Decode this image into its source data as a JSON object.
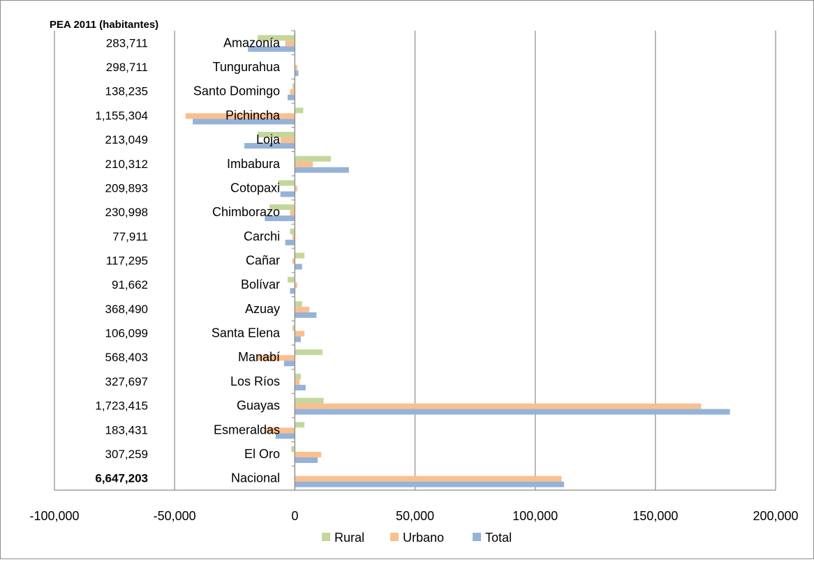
{
  "chart_data": {
    "type": "bar",
    "orientation": "horizontal",
    "header_label": "PEA  2011 (habitantes)",
    "categories": [
      "Amazonía",
      "Tungurahua",
      "Santo Domingo",
      "Pichincha",
      "Loja",
      "Imbabura",
      "Cotopaxi",
      "Chimborazo",
      "Carchi",
      "Cañar",
      "Bolívar",
      "Azuay",
      "Santa Elena",
      "Manabí",
      "Los Ríos",
      "Guayas",
      "Esmeraldas",
      "El Oro",
      "Nacional"
    ],
    "pea_values": [
      "283,711",
      "298,711",
      "138,235",
      "1,155,304",
      "213,049",
      "210,312",
      "209,893",
      "230,998",
      "77,911",
      "117,295",
      "91,662",
      "368,490",
      "106,099",
      "568,403",
      "327,697",
      "1,723,415",
      "183,431",
      "307,259",
      "6,647,203"
    ],
    "series": [
      {
        "name": "Rural",
        "color": "#c4d79b",
        "values": [
          -15500,
          0,
          -1000,
          3500,
          -15500,
          15000,
          -7000,
          -10500,
          -2000,
          4000,
          -3000,
          3000,
          -1000,
          11500,
          2500,
          12000,
          4000,
          -1500,
          0
        ]
      },
      {
        "name": "Urbano",
        "color": "#fabf8f",
        "values": [
          -4000,
          1000,
          -2000,
          -45500,
          -6000,
          7500,
          1000,
          -2000,
          -1000,
          -1000,
          1000,
          6000,
          4000,
          -15500,
          2000,
          169000,
          -12000,
          11000,
          111000
        ]
      },
      {
        "name": "Total",
        "color": "#95b3d7",
        "values": [
          -19500,
          1500,
          -3000,
          -42500,
          -21000,
          22500,
          -6000,
          -12500,
          -4000,
          3000,
          -2000,
          9000,
          2500,
          -4500,
          4500,
          181000,
          -8000,
          9500,
          112000
        ]
      }
    ],
    "xlim": [
      -100000,
      200000
    ],
    "xticks": [
      -100000,
      -50000,
      0,
      50000,
      100000,
      150000,
      200000
    ],
    "xtick_labels": [
      "-100,000",
      "-50,000",
      "0",
      "50,000",
      "100,000",
      "150,000",
      "200,000"
    ],
    "grid": true,
    "legend_position": "bottom",
    "legend": [
      "Rural",
      "Urbano",
      "Total"
    ],
    "xlabel": "",
    "ylabel": ""
  }
}
